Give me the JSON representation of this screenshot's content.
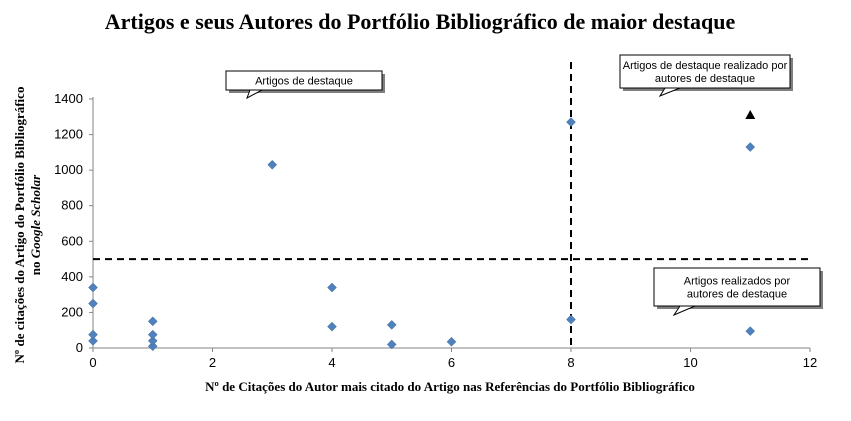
{
  "chart_data": {
    "type": "scatter",
    "title": "Artigos  e seus Autores do Portfólio Bibliográfico  de maior destaque",
    "xlabel": "Nº de Citações do Autor mais citado do Artigo nas Referências do Portfólio Bibliográfico",
    "ylabel_line1": "Nº de citações do Artigo do Portfólio Bibliográfico",
    "ylabel_line2_prefix": "no ",
    "ylabel_line2_italic": "Google Scholar",
    "xlim": [
      0,
      12
    ],
    "ylim": [
      0,
      1400
    ],
    "x_ticks": [
      0,
      2,
      4,
      6,
      8,
      10,
      12
    ],
    "y_ticks": [
      0,
      200,
      400,
      600,
      800,
      1000,
      1200,
      1400
    ],
    "grid": false,
    "series": [
      {
        "marker": "diamond",
        "color": "#4f81bd",
        "points": [
          {
            "x": 0,
            "y": 40
          },
          {
            "x": 0,
            "y": 75
          },
          {
            "x": 0,
            "y": 250
          },
          {
            "x": 0,
            "y": 340
          },
          {
            "x": 1,
            "y": 10
          },
          {
            "x": 1,
            "y": 40
          },
          {
            "x": 1,
            "y": 75
          },
          {
            "x": 1,
            "y": 150
          },
          {
            "x": 3,
            "y": 1030
          },
          {
            "x": 4,
            "y": 120
          },
          {
            "x": 4,
            "y": 340
          },
          {
            "x": 5,
            "y": 20
          },
          {
            "x": 5,
            "y": 130
          },
          {
            "x": 6,
            "y": 35
          },
          {
            "x": 8,
            "y": 160
          },
          {
            "x": 8,
            "y": 1270
          },
          {
            "x": 11,
            "y": 95
          },
          {
            "x": 11,
            "y": 1130
          }
        ]
      },
      {
        "marker": "triangle",
        "color": "#000000",
        "points": [
          {
            "x": 11,
            "y": 1310
          }
        ]
      }
    ],
    "threshold_lines": [
      {
        "orientation": "horizontal",
        "value": 500,
        "style": "dashed"
      },
      {
        "orientation": "vertical",
        "value": 8,
        "style": "dashed"
      }
    ],
    "annotations": [
      {
        "text_lines": [
          "Artigos de destaque"
        ]
      },
      {
        "text_lines": [
          "Artigos de destaque realizado por",
          "autores de destaque"
        ]
      },
      {
        "text_lines": [
          "Artigos realizados por",
          "autores de destaque"
        ]
      }
    ]
  }
}
